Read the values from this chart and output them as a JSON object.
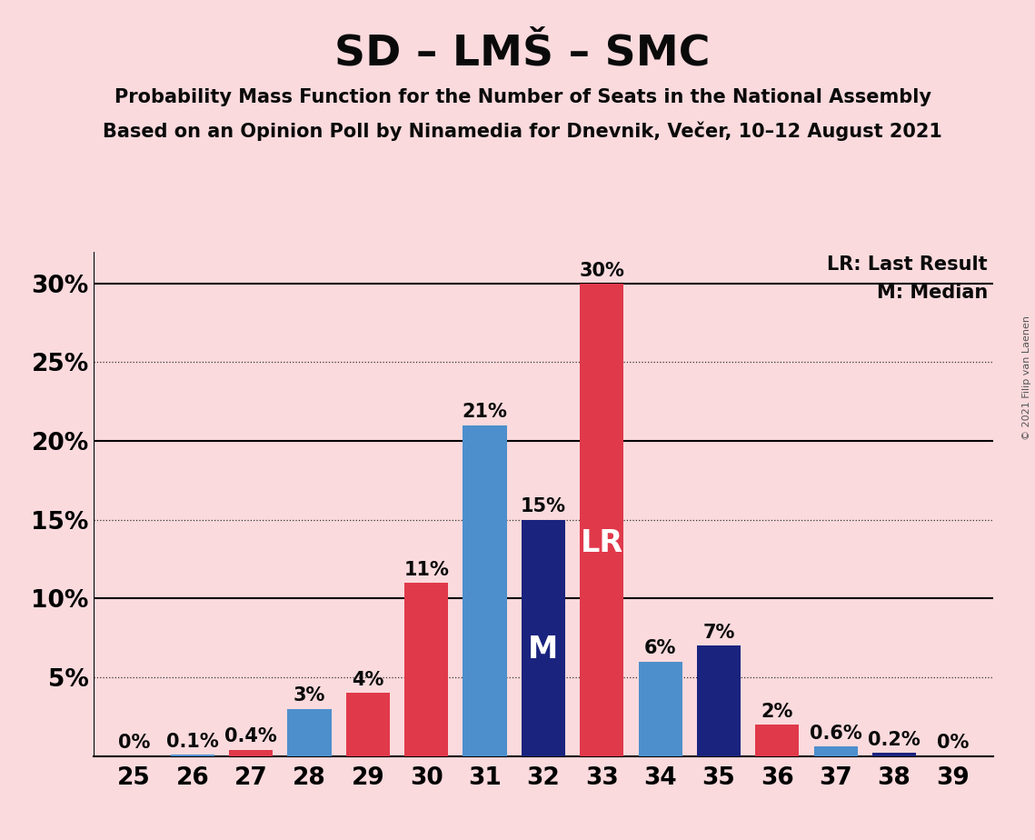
{
  "title": "SD – LMŠ – SMC",
  "subtitle1": "Probability Mass Function for the Number of Seats in the National Assembly",
  "subtitle2": "Based on an Opinion Poll by Ninamedia for Dnevnik, Večer, 10–12 August 2021",
  "copyright": "© 2021 Filip van Laenen",
  "legend_lr": "LR: Last Result",
  "legend_m": "M: Median",
  "seats": [
    25,
    26,
    27,
    28,
    29,
    30,
    31,
    32,
    33,
    34,
    35,
    36,
    37,
    38,
    39
  ],
  "values": [
    0.0,
    0.1,
    0.4,
    3.0,
    4.0,
    11.0,
    21.0,
    15.0,
    30.0,
    6.0,
    7.0,
    2.0,
    0.6,
    0.2,
    0.0
  ],
  "color_map": {
    "25": "#4D8FCC",
    "26": "#4D8FCC",
    "27": "#E0394A",
    "28": "#4D8FCC",
    "29": "#E0394A",
    "30": "#E0394A",
    "31": "#4D8FCC",
    "32": "#1A237E",
    "33": "#E0394A",
    "34": "#4D8FCC",
    "35": "#1A237E",
    "36": "#E0394A",
    "37": "#4D8FCC",
    "38": "#1A237E",
    "39": "#1A237E"
  },
  "median_seat": 32,
  "lr_seat": 33,
  "background_color": "#FADADD",
  "title_fontsize": 34,
  "subtitle_fontsize": 15,
  "bar_label_fontsize": 15,
  "axis_tick_fontsize": 19,
  "legend_fontsize": 15,
  "copyright_fontsize": 8
}
